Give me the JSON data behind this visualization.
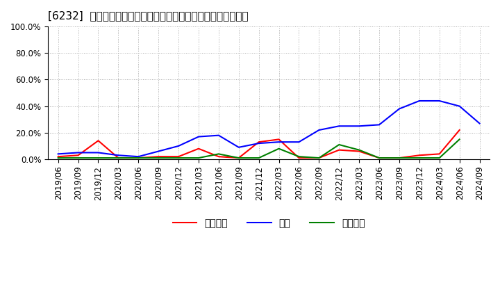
{
  "title": "[6232]  売上債権、在庫、買入債務の総資産に対する比率の推移",
  "ylim": [
    0,
    1.0
  ],
  "yticks": [
    0.0,
    0.2,
    0.4,
    0.6,
    0.8,
    1.0
  ],
  "legend_labels": [
    "売上債権",
    "在庫",
    "買入債務"
  ],
  "line_colors": [
    "#ff0000",
    "#0000ff",
    "#008000"
  ],
  "dates": [
    "2019/06",
    "2019/09",
    "2019/12",
    "2020/03",
    "2020/06",
    "2020/09",
    "2020/12",
    "2021/03",
    "2021/06",
    "2021/09",
    "2021/12",
    "2022/03",
    "2022/06",
    "2022/09",
    "2022/12",
    "2023/03",
    "2023/06",
    "2023/09",
    "2023/12",
    "2024/03",
    "2024/06",
    "2024/09"
  ],
  "series_urikake": [
    0.02,
    0.03,
    0.14,
    0.01,
    0.01,
    0.02,
    0.02,
    0.08,
    0.02,
    0.01,
    0.13,
    0.15,
    0.01,
    0.01,
    0.07,
    0.06,
    0.01,
    0.01,
    0.03,
    0.04,
    0.22,
    null
  ],
  "series_zaiko": [
    0.04,
    0.05,
    0.05,
    0.03,
    0.02,
    0.06,
    0.1,
    0.17,
    0.18,
    0.09,
    0.12,
    0.13,
    0.13,
    0.22,
    0.25,
    0.25,
    0.26,
    0.38,
    0.44,
    0.44,
    0.4,
    0.27
  ],
  "series_kaiire": [
    0.01,
    0.01,
    0.01,
    0.01,
    0.01,
    0.01,
    0.01,
    0.01,
    0.04,
    0.01,
    0.01,
    0.08,
    0.02,
    0.01,
    0.11,
    0.07,
    0.01,
    0.01,
    0.01,
    0.01,
    0.15,
    null
  ],
  "background_color": "#ffffff",
  "grid_color": "#aaaaaa",
  "title_fontsize": 11,
  "tick_fontsize": 8.5,
  "legend_fontsize": 10
}
